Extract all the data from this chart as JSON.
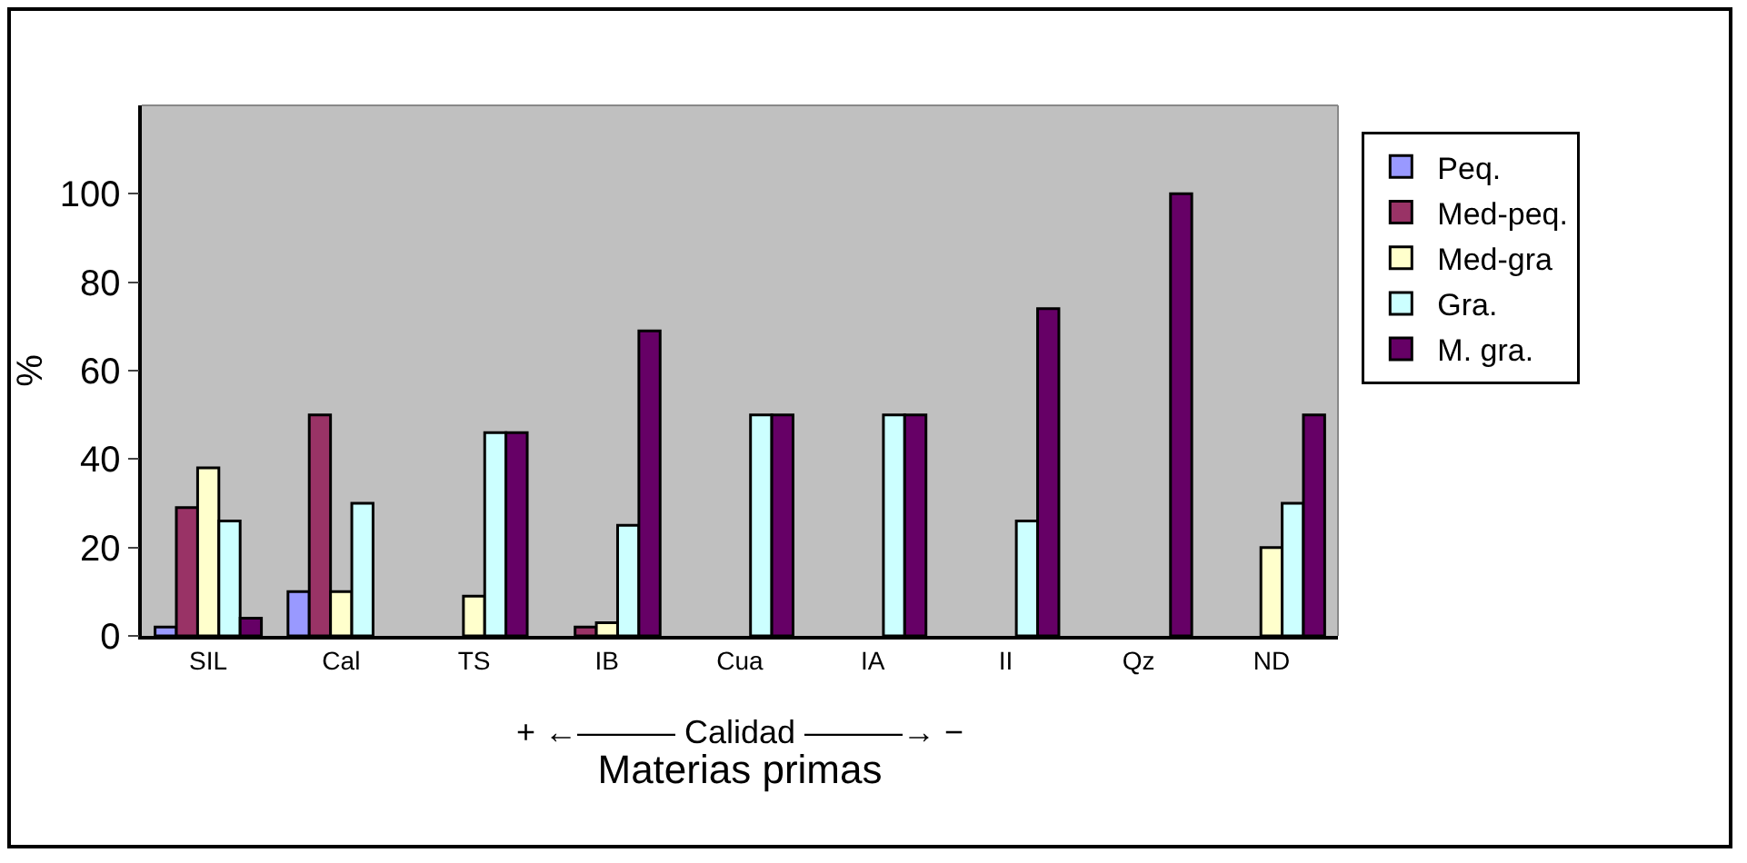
{
  "chart_data": {
    "type": "bar",
    "categories": [
      "SIL",
      "Cal",
      "TS",
      "IB",
      "Cua",
      "IA",
      "II",
      "Qz",
      "ND"
    ],
    "series": [
      {
        "name": "Peq.",
        "color": "#9999ff",
        "values": [
          2,
          10,
          null,
          null,
          null,
          null,
          null,
          null,
          null
        ]
      },
      {
        "name": "Med-peq.",
        "color": "#993366",
        "values": [
          29,
          50,
          null,
          2,
          null,
          null,
          null,
          null,
          null
        ]
      },
      {
        "name": "Med-gra",
        "color": "#ffffcc",
        "values": [
          38,
          10,
          9,
          3,
          null,
          null,
          null,
          null,
          20
        ]
      },
      {
        "name": "Gra.",
        "color": "#ccffff",
        "values": [
          26,
          30,
          46,
          25,
          50,
          50,
          26,
          null,
          30
        ]
      },
      {
        "name": "M. gra.",
        "color": "#660066",
        "values": [
          4,
          null,
          46,
          69,
          50,
          50,
          74,
          100,
          50
        ]
      }
    ],
    "ylabel": "%",
    "xlabel": "Materias primas",
    "annotations": [
      "+ ←——— Calidad ———→ −"
    ],
    "ylim": [
      0,
      120
    ],
    "yticks": [
      0,
      20,
      40,
      60,
      80,
      100
    ],
    "grid": false,
    "legend": "right"
  }
}
